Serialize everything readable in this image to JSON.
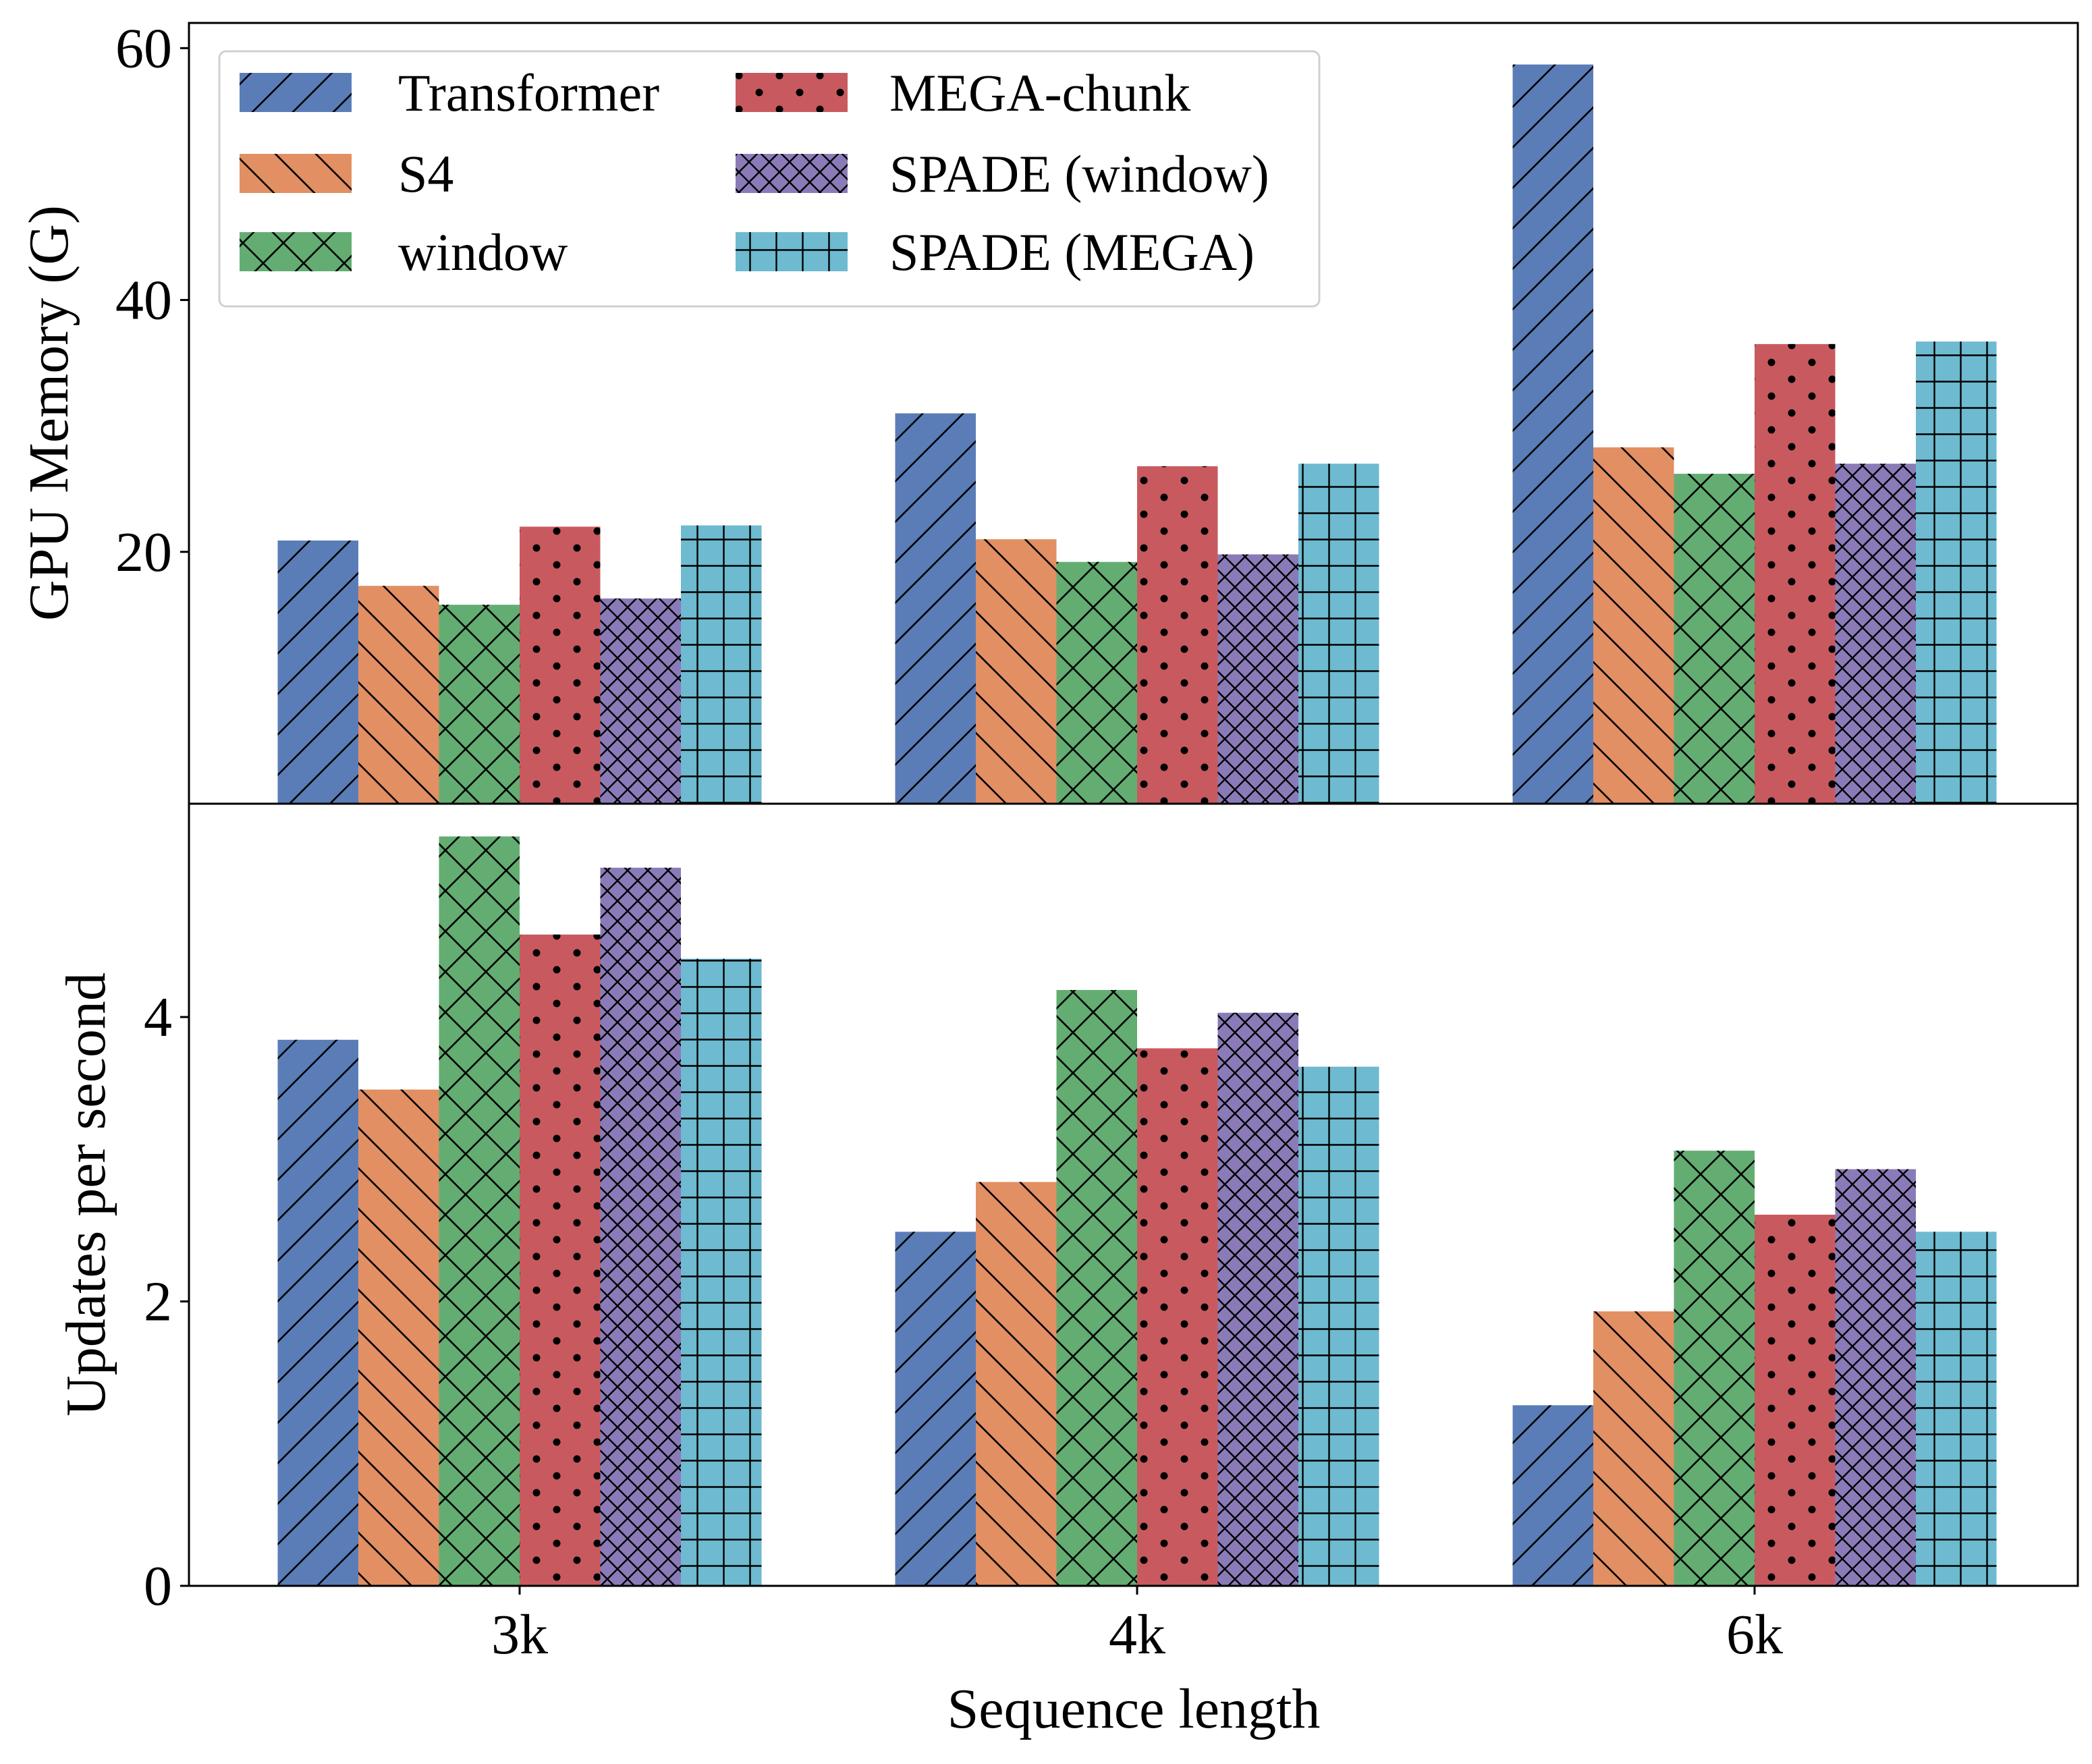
{
  "chart_data": [
    {
      "type": "bar",
      "categories": [
        "3k",
        "4k",
        "6k"
      ],
      "ylabel": "GPU Memory (G)",
      "ylim": [
        0,
        62
      ],
      "yticks": [
        20,
        40,
        60
      ],
      "legend_position": "top-left",
      "series": [
        {
          "name": "Transformer",
          "color": "#5b7db7",
          "hatch": "forward-slash",
          "values": [
            20.9,
            31.0,
            58.7
          ]
        },
        {
          "name": "S4",
          "color": "#e28f63",
          "hatch": "back-slash",
          "values": [
            17.3,
            21.0,
            28.3
          ]
        },
        {
          "name": "window",
          "color": "#63ad72",
          "hatch": "cross",
          "values": [
            15.8,
            19.2,
            26.2
          ]
        },
        {
          "name": "MEGA-chunk",
          "color": "#c85a5f",
          "hatch": "dots",
          "values": [
            22.0,
            26.8,
            36.5
          ]
        },
        {
          "name": "SPADE (window)",
          "color": "#8a7bb8",
          "hatch": "double-cross",
          "values": [
            16.3,
            19.8,
            27.0
          ]
        },
        {
          "name": "SPADE (MEGA)",
          "color": "#6ebad0",
          "hatch": "grid",
          "values": [
            22.1,
            27.0,
            36.7
          ]
        }
      ]
    },
    {
      "type": "bar",
      "categories": [
        "3k",
        "4k",
        "6k"
      ],
      "xlabel": "Sequence length",
      "ylabel": "Updates per second",
      "ylim": [
        0,
        5.5
      ],
      "yticks": [
        0,
        2,
        4
      ],
      "series": [
        {
          "name": "Transformer",
          "color": "#5b7db7",
          "hatch": "forward-slash",
          "values": [
            3.84,
            2.49,
            1.27
          ]
        },
        {
          "name": "S4",
          "color": "#e28f63",
          "hatch": "back-slash",
          "values": [
            3.49,
            2.84,
            1.93
          ]
        },
        {
          "name": "window",
          "color": "#63ad72",
          "hatch": "cross",
          "values": [
            5.27,
            4.19,
            3.06
          ]
        },
        {
          "name": "MEGA-chunk",
          "color": "#c85a5f",
          "hatch": "dots",
          "values": [
            4.58,
            3.78,
            2.61
          ]
        },
        {
          "name": "SPADE (window)",
          "color": "#8a7bb8",
          "hatch": "double-cross",
          "values": [
            5.05,
            4.03,
            2.93
          ]
        },
        {
          "name": "SPADE (MEGA)",
          "color": "#6ebad0",
          "hatch": "grid",
          "values": [
            4.41,
            3.65,
            2.49
          ]
        }
      ]
    }
  ]
}
